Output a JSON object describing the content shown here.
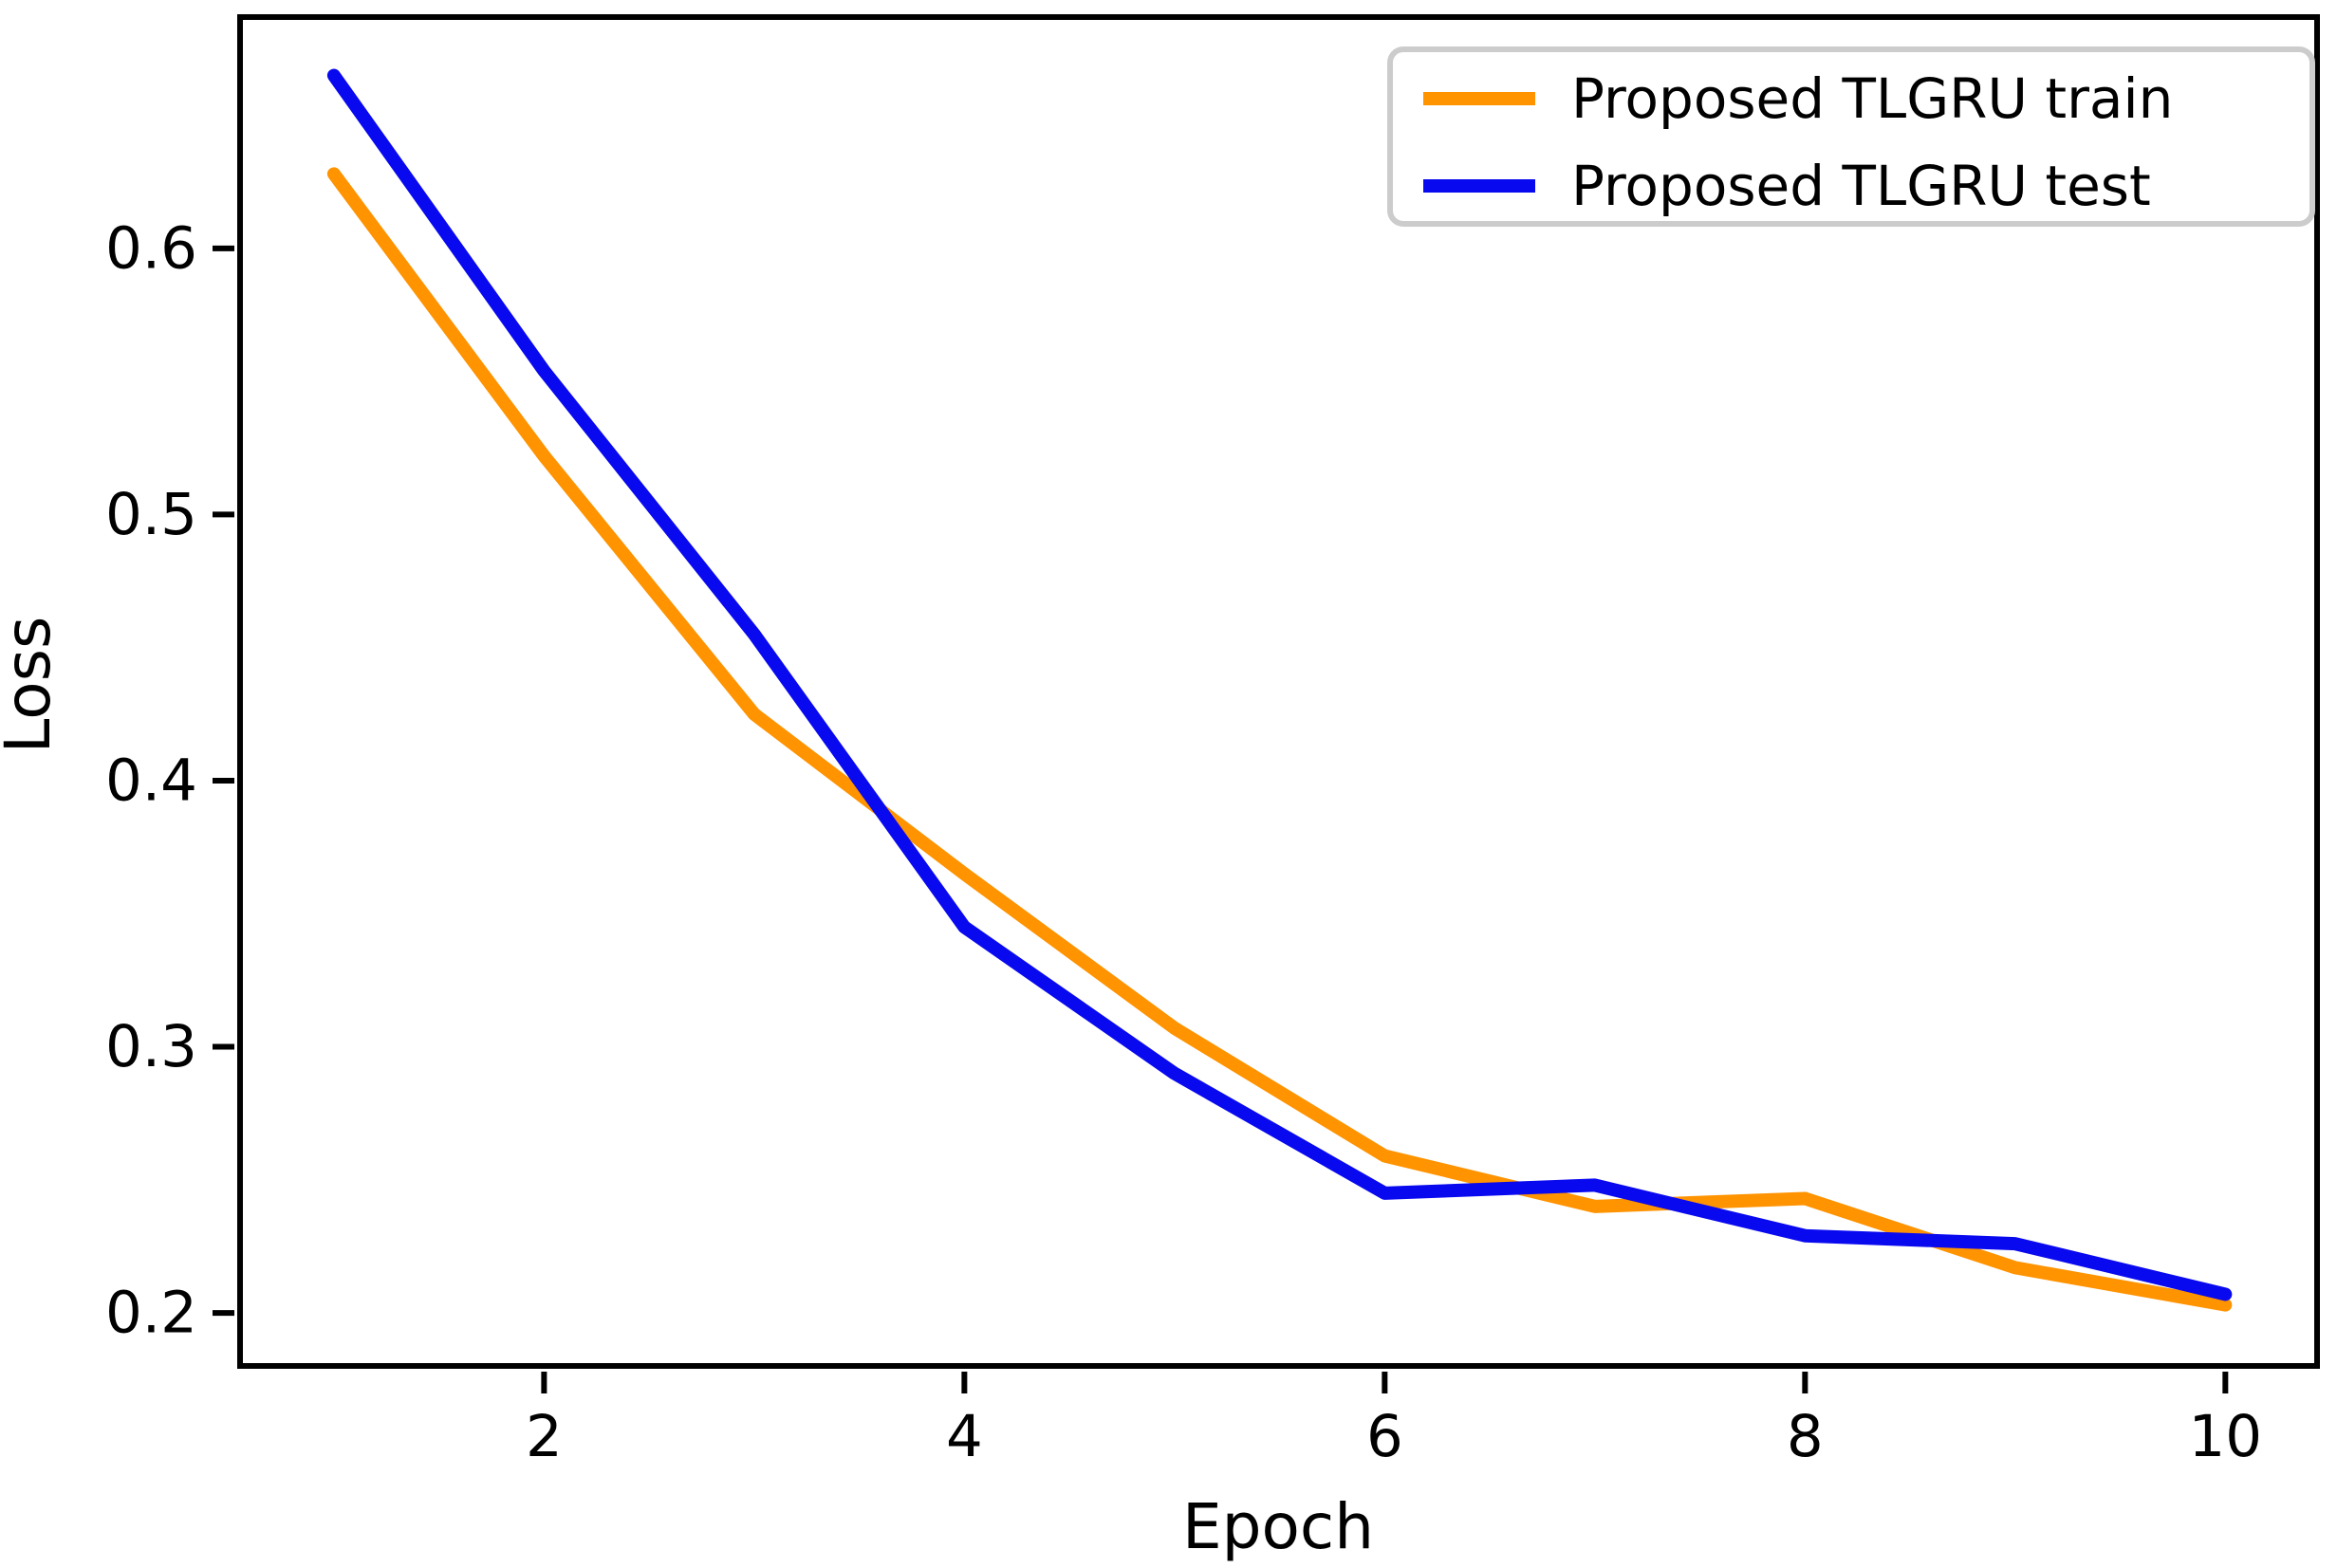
{
  "chart_data": {
    "type": "line",
    "title": "",
    "xlabel": "Epoch",
    "ylabel": "Loss",
    "x": [
      1,
      2,
      3,
      4,
      5,
      6,
      7,
      8,
      9,
      10
    ],
    "series": [
      {
        "name": "Proposed TLGRU train",
        "color": "#FF9300",
        "values": [
          0.628,
          0.522,
          0.425,
          0.365,
          0.307,
          0.259,
          0.24,
          0.243,
          0.217,
          0.203
        ]
      },
      {
        "name": "Proposed TLGRU test",
        "color": "#0909F0",
        "values": [
          0.665,
          0.554,
          0.455,
          0.345,
          0.29,
          0.245,
          0.248,
          0.229,
          0.226,
          0.207
        ]
      }
    ],
    "xlim": [
      0.54,
      10.45
    ],
    "ylim": [
      0.179,
      0.688
    ],
    "xticks": [
      "2",
      "4",
      "6",
      "8",
      "10"
    ],
    "xtick_values": [
      2,
      4,
      6,
      8,
      10
    ],
    "yticks": [
      "0.2",
      "0.3",
      "0.4",
      "0.5",
      "0.6"
    ],
    "ytick_values": [
      0.2,
      0.3,
      0.4,
      0.5,
      0.6
    ],
    "grid": false,
    "legend_position": "upper right",
    "axis_color": "#000000",
    "legend_border_color": "#cccccc",
    "background_color": "#ffffff"
  }
}
